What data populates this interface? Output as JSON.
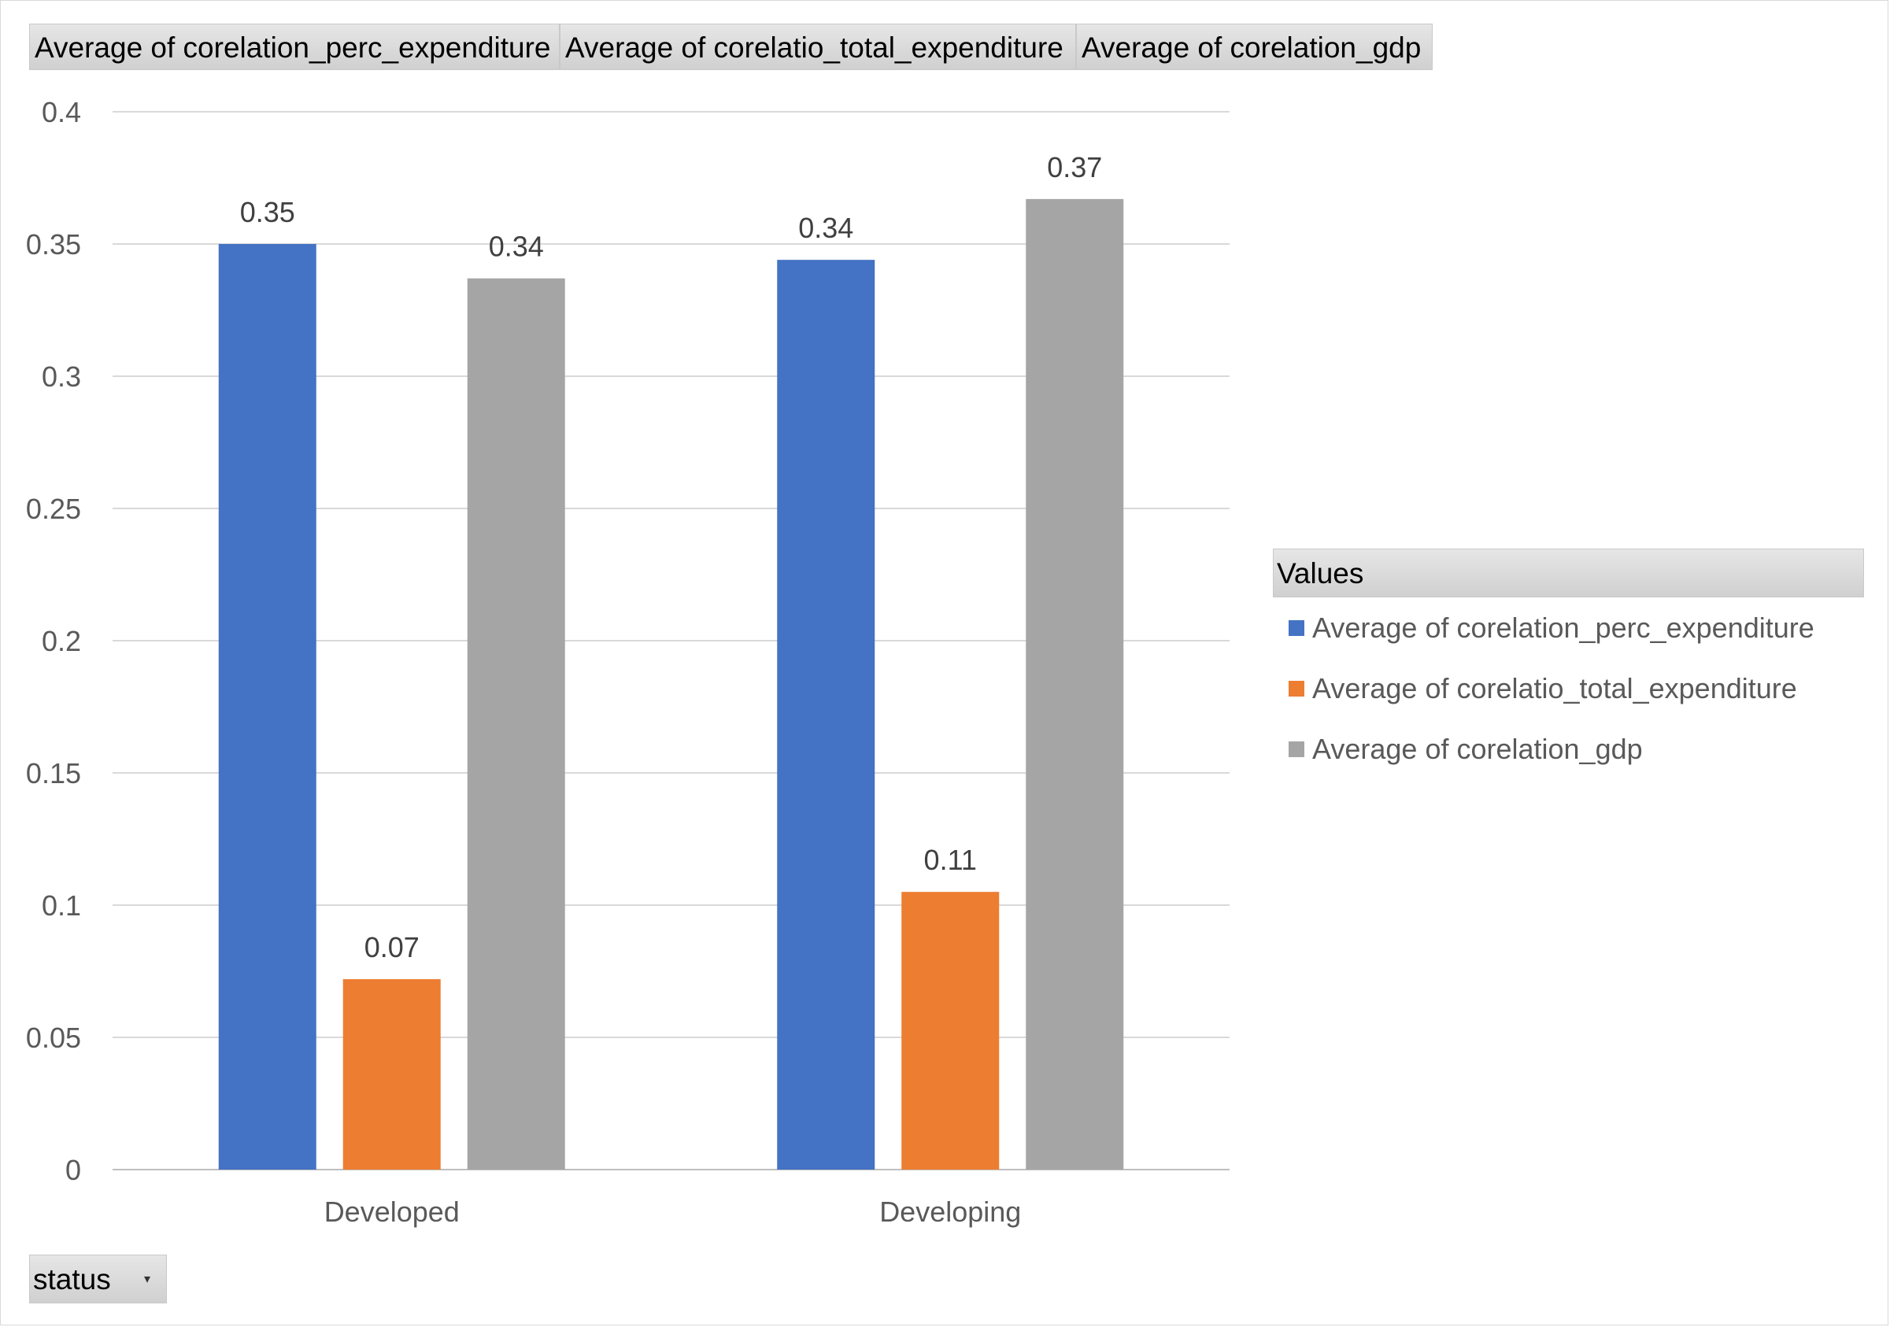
{
  "field_buttons": [
    "Average  of corelation_perc_expenditure",
    "Average  of corelatio_total_expenditure",
    "Average  of corelation_gdp"
  ],
  "axis_field_button": {
    "label": "status",
    "dropdown_icon": "triangle-down-icon"
  },
  "legend": {
    "title": "Values",
    "items": [
      {
        "label": "Average of corelation_perc_expenditure",
        "color": "#4472C4"
      },
      {
        "label": "Average of corelatio_total_expenditure",
        "color": "#ED7D31"
      },
      {
        "label": "Average of corelation_gdp",
        "color": "#A5A5A5"
      }
    ]
  },
  "chart_data": {
    "type": "bar",
    "categories": [
      "Developed",
      "Developing"
    ],
    "series": [
      {
        "name": "Average of corelation_perc_expenditure",
        "values": [
          0.35,
          0.344
        ],
        "labels": [
          "0.35",
          "0.34"
        ],
        "color": "#4472C4"
      },
      {
        "name": "Average of corelatio_total_expenditure",
        "values": [
          0.072,
          0.105
        ],
        "labels": [
          "0.07",
          "0.11"
        ],
        "color": "#ED7D31"
      },
      {
        "name": "Average of corelation_gdp",
        "values": [
          0.337,
          0.367
        ],
        "labels": [
          "0.34",
          "0.37"
        ],
        "color": "#A5A5A5"
      }
    ],
    "yticks": [
      "0",
      "0.05",
      "0.1",
      "0.15",
      "0.2",
      "0.25",
      "0.3",
      "0.35",
      "0.4"
    ],
    "ylim": [
      0,
      0.4
    ],
    "grid": true,
    "legend_position": "right"
  }
}
